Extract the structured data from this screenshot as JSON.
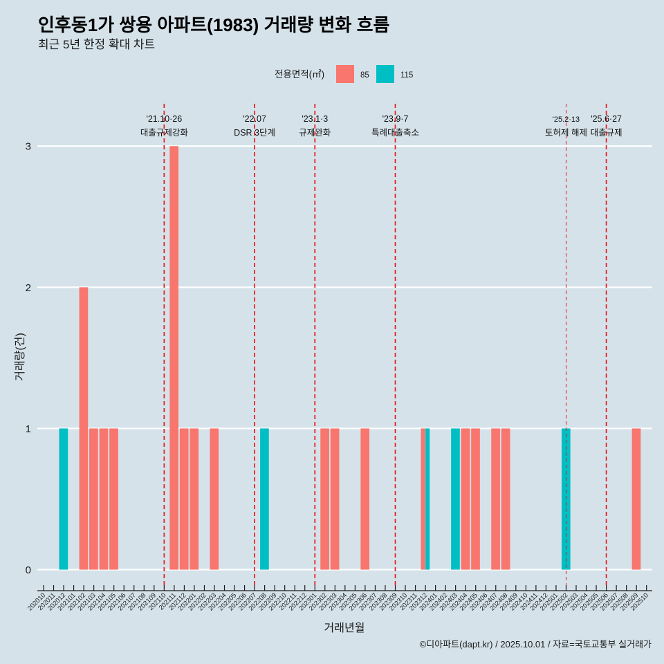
{
  "chart_data": {
    "type": "bar",
    "title": "인후동1가 쌍용 아파트(1983) 거래량 변화 흐름",
    "subtitle": "최근 5년 한정 확대 차트",
    "xlabel": "거래년월",
    "ylabel": "거래량(건)",
    "ylim": [
      -0.11,
      3.3
    ],
    "yticks": [
      0,
      1,
      2,
      3
    ],
    "grid": "horizontal-major",
    "legend": {
      "title": "전용면적(㎡)",
      "position": "top"
    },
    "categories": [
      "202010",
      "202011",
      "202012",
      "202101",
      "202102",
      "202103",
      "202104",
      "202105",
      "202106",
      "202107",
      "202108",
      "202109",
      "202110",
      "202111",
      "202112",
      "202201",
      "202202",
      "202203",
      "202204",
      "202205",
      "202206",
      "202207",
      "202208",
      "202209",
      "202210",
      "202211",
      "202212",
      "202301",
      "202302",
      "202303",
      "202304",
      "202305",
      "202306",
      "202307",
      "202308",
      "202309",
      "202310",
      "202311",
      "202312",
      "202401",
      "202402",
      "202403",
      "202404",
      "202405",
      "202406",
      "202407",
      "202408",
      "202409",
      "202410",
      "202411",
      "202412",
      "202501",
      "202502",
      "202503",
      "202504",
      "202505",
      "202506",
      "202507",
      "202508",
      "202509",
      "202510"
    ],
    "series": [
      {
        "name": "85",
        "color": "#f8766d",
        "values": [
          0,
          0,
          0,
          0,
          2,
          1,
          1,
          1,
          0,
          0,
          0,
          0,
          0,
          3,
          1,
          1,
          0,
          1,
          0,
          0,
          0,
          0,
          0,
          0,
          0,
          0,
          0,
          0,
          1,
          1,
          0,
          0,
          1,
          0,
          0,
          0,
          0,
          0,
          1,
          0,
          0,
          0,
          1,
          1,
          0,
          1,
          1,
          0,
          0,
          0,
          0,
          0,
          0,
          0,
          0,
          0,
          0,
          0,
          0,
          1,
          0
        ]
      },
      {
        "name": "115",
        "color": "#00bfc4",
        "values": [
          0,
          0,
          1,
          0,
          0,
          0,
          0,
          0,
          0,
          0,
          0,
          0,
          0,
          0,
          0,
          0,
          0,
          0,
          0,
          0,
          0,
          0,
          1,
          0,
          0,
          0,
          0,
          0,
          0,
          0,
          0,
          0,
          0,
          0,
          0,
          0,
          0,
          0,
          1,
          0,
          0,
          1,
          0,
          0,
          0,
          0,
          0,
          0,
          0,
          0,
          0,
          0,
          1,
          0,
          0,
          0,
          0,
          0,
          0,
          0,
          0
        ]
      }
    ],
    "annotations": [
      {
        "x": "202110",
        "date": "'21.10·26",
        "label": "대출규제강화",
        "minor": false
      },
      {
        "x": "202207",
        "date": "'22.07",
        "label": "DSR 3단계",
        "minor": false
      },
      {
        "x": "202301",
        "date": "'23.1·3",
        "label": "규제완화",
        "minor": false
      },
      {
        "x": "202309",
        "date": "'23.9·7",
        "label": "특례대출축소",
        "minor": false
      },
      {
        "x": "202502",
        "date": "'25.2·13",
        "label": "토허제 해제",
        "minor": true
      },
      {
        "x": "202506",
        "date": "'25.6·27",
        "label": "대출규제",
        "minor": false
      }
    ],
    "annotation_color": "#e41a1c"
  },
  "footer": {
    "credit": "©디아파트(dapt.kr) / 2025.10.01 / 자료=국토교통부 실거래가"
  }
}
